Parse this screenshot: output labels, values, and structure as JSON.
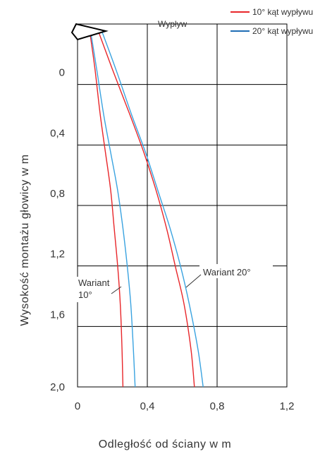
{
  "chart_data": {
    "type": "line",
    "xlabel": "Odległość  od  ściany  w   m",
    "ylabel": "Wysokość montażu głowicy  w  m",
    "xlim": [
      0,
      1.2
    ],
    "ylim": [
      2.0,
      -0.4
    ],
    "y_axis_inverted": true,
    "x_ticks": [
      "0",
      "0,4",
      "0,8",
      "1,2"
    ],
    "y_ticks": [
      "0",
      "0,4",
      "0,8",
      "1,2",
      "1,6",
      "2,0"
    ],
    "grid": true,
    "legend_position": "top-right",
    "legend": [
      {
        "label": "10° kąt  wypływu",
        "color": "#e8262a"
      },
      {
        "label": "20° kąt  wypływu",
        "color": "#1f6db5"
      }
    ],
    "outlet_label": "Wypływ",
    "annotations": [
      {
        "lines": [
          "Wariant",
          "10°"
        ]
      },
      {
        "lines": [
          "Wariant  20°"
        ]
      }
    ],
    "series": [
      {
        "name": "10° kąt  wypływu",
        "group": "Wariant 10°",
        "color": "#e8262a",
        "x": [
          0.07,
          0.1,
          0.13,
          0.16,
          0.19,
          0.21,
          0.23,
          0.245,
          0.255,
          0.26
        ],
        "y": [
          -0.35,
          -0.1,
          0.2,
          0.45,
          0.7,
          0.95,
          1.2,
          1.45,
          1.75,
          2.0
        ]
      },
      {
        "name": "20° kąt  wypływu",
        "group": "Wariant 10°",
        "color": "#3aa3e0",
        "x": [
          0.075,
          0.11,
          0.15,
          0.19,
          0.23,
          0.26,
          0.285,
          0.305,
          0.32,
          0.33
        ],
        "y": [
          -0.35,
          -0.1,
          0.2,
          0.45,
          0.7,
          0.95,
          1.2,
          1.45,
          1.75,
          2.0
        ]
      },
      {
        "name": "10° kąt  wypływu",
        "group": "Wariant 20°",
        "color": "#e8262a",
        "x": [
          0.12,
          0.2,
          0.3,
          0.38,
          0.45,
          0.51,
          0.56,
          0.61,
          0.65,
          0.67
        ],
        "y": [
          -0.35,
          -0.1,
          0.2,
          0.45,
          0.7,
          0.95,
          1.2,
          1.45,
          1.75,
          2.0
        ]
      },
      {
        "name": "20° kąt  wypływu",
        "group": "Wariant 20°",
        "color": "#3aa3e0",
        "x": [
          0.14,
          0.22,
          0.31,
          0.39,
          0.46,
          0.53,
          0.59,
          0.64,
          0.69,
          0.72
        ],
        "y": [
          -0.35,
          -0.1,
          0.2,
          0.45,
          0.7,
          0.95,
          1.2,
          1.45,
          1.75,
          2.0
        ]
      }
    ]
  }
}
